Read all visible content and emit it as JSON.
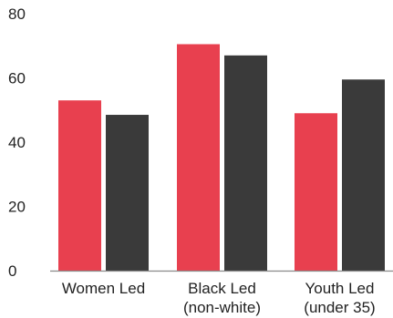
{
  "chart_data": {
    "type": "bar",
    "categories": [
      [
        "Women Led"
      ],
      [
        "Black Led",
        "(non-white)"
      ],
      [
        "Youth Led",
        "(under 35)"
      ]
    ],
    "series": [
      {
        "color": "#e8404f",
        "values": [
          53,
          70.5,
          49
        ]
      },
      {
        "color": "#3a3a3a",
        "values": [
          48.5,
          67,
          59.5
        ]
      }
    ],
    "title": "",
    "xlabel": "",
    "ylabel": "",
    "ylim": [
      0,
      80
    ],
    "yticks": [
      "0",
      "20",
      "40",
      "60",
      "80"
    ],
    "grid": false
  }
}
